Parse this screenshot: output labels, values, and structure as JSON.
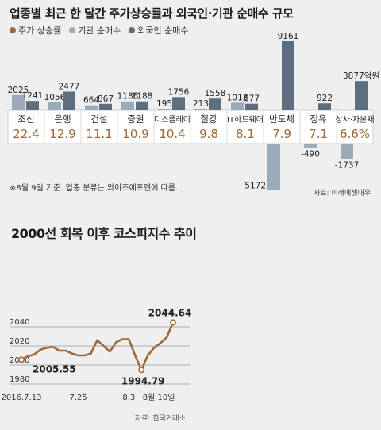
{
  "chart1": {
    "title": "업종별 최근 한 달간 주가상승률과 외국인·기관 순매수 규모",
    "legend": [
      {
        "name": "주가 상승률",
        "color": "#a06a3a"
      },
      {
        "name": "기관 순매수",
        "color": "#9cabb9"
      },
      {
        "name": "외국인 순매수",
        "color": "#5d6f7e"
      }
    ],
    "note": "※8월 9일 기준. 업종 분류는 와이즈에프엔에 따름.",
    "source": "자료: 미래에셋대우"
  },
  "chart2": {
    "title": "2000선 회복 이후 코스피지수 추이",
    "source": "자료: 한국거래소"
  },
  "chart_data": [
    {
      "type": "bar",
      "title": "업종별 최근 한 달간 주가상승률과 외국인·기관 순매수 규모",
      "categories": [
        "조선",
        "은행",
        "건설",
        "증권",
        "디스플레이",
        "철강",
        "IT하드웨어",
        "반도체",
        "정유",
        "상사·자본재"
      ],
      "rates": [
        "22.4",
        "12.9",
        "11.1",
        "10.9",
        "10.4",
        "9.8",
        "8.1",
        "7.9",
        "7.1",
        "6.6%"
      ],
      "series": [
        {
          "name": "기관 순매수",
          "values": [
            2025,
            1056,
            664,
            1186,
            195,
            213,
            1013,
            -5172,
            -490,
            -1737
          ],
          "labels": [
            "2025",
            "1056",
            "664",
            "1186",
            "195",
            "213",
            "1013",
            "-5172",
            "-490",
            "-1737"
          ]
        },
        {
          "name": "외국인 순매수",
          "values": [
            1241,
            2477,
            867,
            1188,
            1756,
            1558,
            877,
            9161,
            922,
            3877
          ],
          "labels": [
            "1241",
            "2477",
            "867",
            "1188",
            "1756",
            "1558",
            "877",
            "9161",
            "922",
            "3877억원"
          ]
        }
      ]
    },
    {
      "type": "line",
      "title": "2000선 회복 이후 코스피지수 추이",
      "series": [
        {
          "values": [
            2005.55,
            2009,
            2011,
            2016,
            2018,
            2019,
            2015,
            2015,
            2012,
            2010,
            2010,
            2012,
            2026,
            2020,
            2014,
            2024,
            2027,
            2027,
            2010,
            1994.79,
            2010,
            2018,
            2023,
            2029,
            2044.64
          ]
        }
      ],
      "x_ticks": [
        "2016.7.13",
        "7.25",
        "8.3",
        "8월 10일"
      ],
      "x_tick_index": [
        0,
        9,
        17,
        21
      ],
      "yticks": [
        "1980",
        "2000",
        "2020",
        "2040"
      ],
      "ylim": [
        1980,
        2048
      ],
      "annotations": [
        "2005.55",
        "1994.79",
        "2044.64"
      ]
    }
  ]
}
